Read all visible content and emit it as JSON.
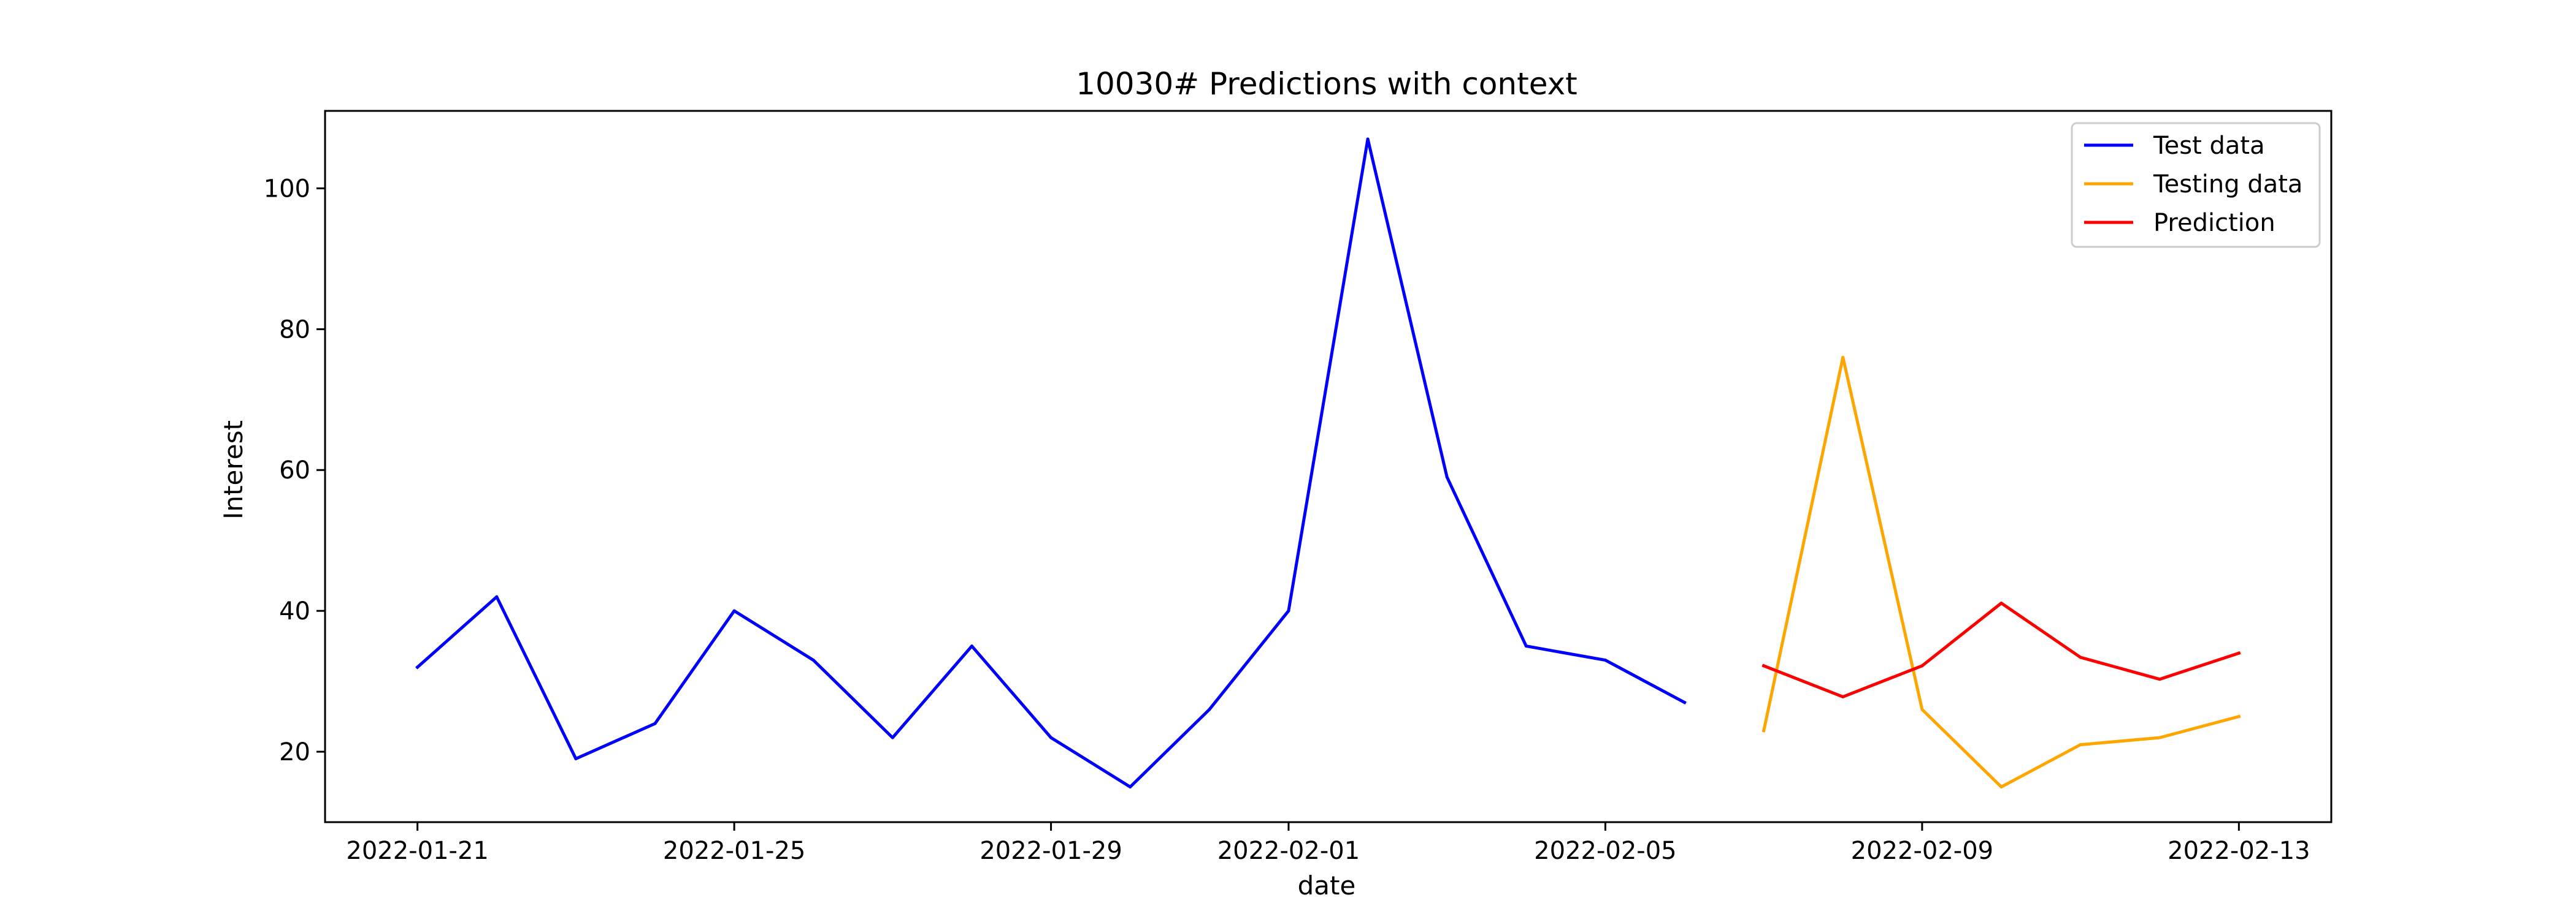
{
  "chart_data": {
    "type": "line",
    "title": "10030# Predictions with context",
    "xlabel": "date",
    "ylabel": "Interest",
    "xlim": [
      "2022-01-19 20:00",
      "2022-02-14 04:00"
    ],
    "ylim": [
      10,
      111
    ],
    "x_ticks": [
      "2022-01-21",
      "2022-01-25",
      "2022-01-29",
      "2022-02-01",
      "2022-02-05",
      "2022-02-09",
      "2022-02-13"
    ],
    "y_ticks": [
      20,
      40,
      60,
      80,
      100
    ],
    "grid": false,
    "legend_position": "top-right",
    "series": [
      {
        "name": "Test data",
        "color": "#0000ff",
        "x": [
          "2022-01-21",
          "2022-01-22",
          "2022-01-23",
          "2022-01-24",
          "2022-01-25",
          "2022-01-26",
          "2022-01-27",
          "2022-01-28",
          "2022-01-29",
          "2022-01-30",
          "2022-01-31",
          "2022-02-01",
          "2022-02-02",
          "2022-02-03",
          "2022-02-04",
          "2022-02-05",
          "2022-02-06"
        ],
        "values": [
          32,
          42,
          19,
          24,
          40,
          33,
          22,
          35,
          22,
          15,
          26,
          40,
          107,
          59,
          35,
          33,
          27
        ]
      },
      {
        "name": "Testing data",
        "color": "#ffa500",
        "x": [
          "2022-02-07",
          "2022-02-08",
          "2022-02-09",
          "2022-02-10",
          "2022-02-11",
          "2022-02-12",
          "2022-02-13"
        ],
        "values": [
          23,
          76,
          26,
          15,
          21,
          22,
          25
        ]
      },
      {
        "name": "Prediction",
        "color": "#ff0000",
        "x": [
          "2022-02-07",
          "2022-02-08",
          "2022-02-09",
          "2022-02-10",
          "2022-02-11",
          "2022-02-12",
          "2022-02-13"
        ],
        "values": [
          32.2,
          27.8,
          32.2,
          41.1,
          33.4,
          30.3,
          34
        ]
      }
    ]
  }
}
